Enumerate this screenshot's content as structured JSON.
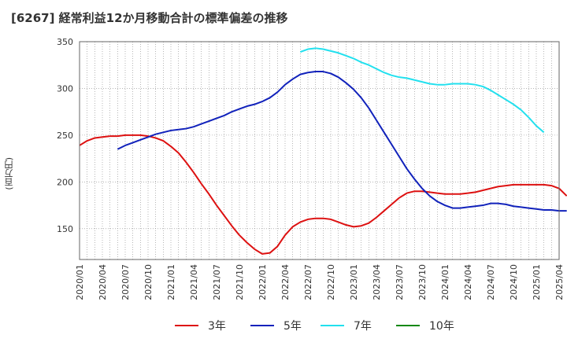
{
  "chart_data": {
    "type": "line",
    "title": "[6267]  経常利益12か月移動合計の標準偏差の推移",
    "ylabel": "(百万円)",
    "xlabel": "",
    "ylim": [
      117,
      350
    ],
    "yticks": [
      150,
      200,
      250,
      300,
      350
    ],
    "xlim": [
      "2020-01",
      "2025-04"
    ],
    "xtick_labels": [
      "2020/01",
      "2020/04",
      "2020/07",
      "2020/10",
      "2021/01",
      "2021/04",
      "2021/07",
      "2021/10",
      "2022/01",
      "2022/04",
      "2022/07",
      "2022/10",
      "2023/01",
      "2023/04",
      "2023/07",
      "2023/10",
      "2024/01",
      "2024/04",
      "2024/07",
      "2024/10",
      "2025/01",
      "2025/04"
    ],
    "grid": true,
    "legend_position": "bottom",
    "series": [
      {
        "name": "3年",
        "color": "#dd1111",
        "start": "2020-01",
        "values": [
          239,
          244,
          247,
          248,
          249,
          249,
          250,
          250,
          250,
          249,
          247,
          244,
          238,
          231,
          221,
          210,
          198,
          187,
          175,
          164,
          153,
          143,
          135,
          128,
          123,
          124,
          131,
          143,
          152,
          157,
          160,
          161,
          161,
          160,
          157,
          154,
          152,
          153,
          156,
          162,
          169,
          176,
          183,
          188,
          190,
          190,
          189,
          188,
          187,
          187,
          187,
          188,
          189,
          191,
          193,
          195,
          196,
          197,
          197,
          197,
          197,
          197,
          196,
          193,
          185
        ]
      },
      {
        "name": "5年",
        "color": "#1122bb",
        "start": "2020-06",
        "values": [
          235,
          239,
          242,
          245,
          248,
          251,
          253,
          255,
          256,
          257,
          259,
          262,
          265,
          268,
          271,
          275,
          278,
          281,
          283,
          286,
          290,
          296,
          304,
          310,
          315,
          317,
          318,
          318,
          316,
          312,
          306,
          299,
          290,
          279,
          266,
          253,
          240,
          227,
          214,
          203,
          193,
          185,
          179,
          175,
          172,
          172,
          173,
          174,
          175,
          177,
          177,
          176,
          174,
          173,
          172,
          171,
          170,
          170,
          169,
          169
        ]
      },
      {
        "name": "7年",
        "color": "#22e0ee",
        "start": "2022-06",
        "values": [
          339,
          342,
          343,
          342,
          340,
          338,
          335,
          332,
          328,
          325,
          321,
          317,
          314,
          312,
          311,
          309,
          307,
          305,
          304,
          304,
          305,
          305,
          305,
          304,
          302,
          298,
          293,
          288,
          283,
          277,
          269,
          260,
          253
        ]
      },
      {
        "name": "10年",
        "color": "#118811",
        "start": "",
        "values": []
      }
    ]
  }
}
